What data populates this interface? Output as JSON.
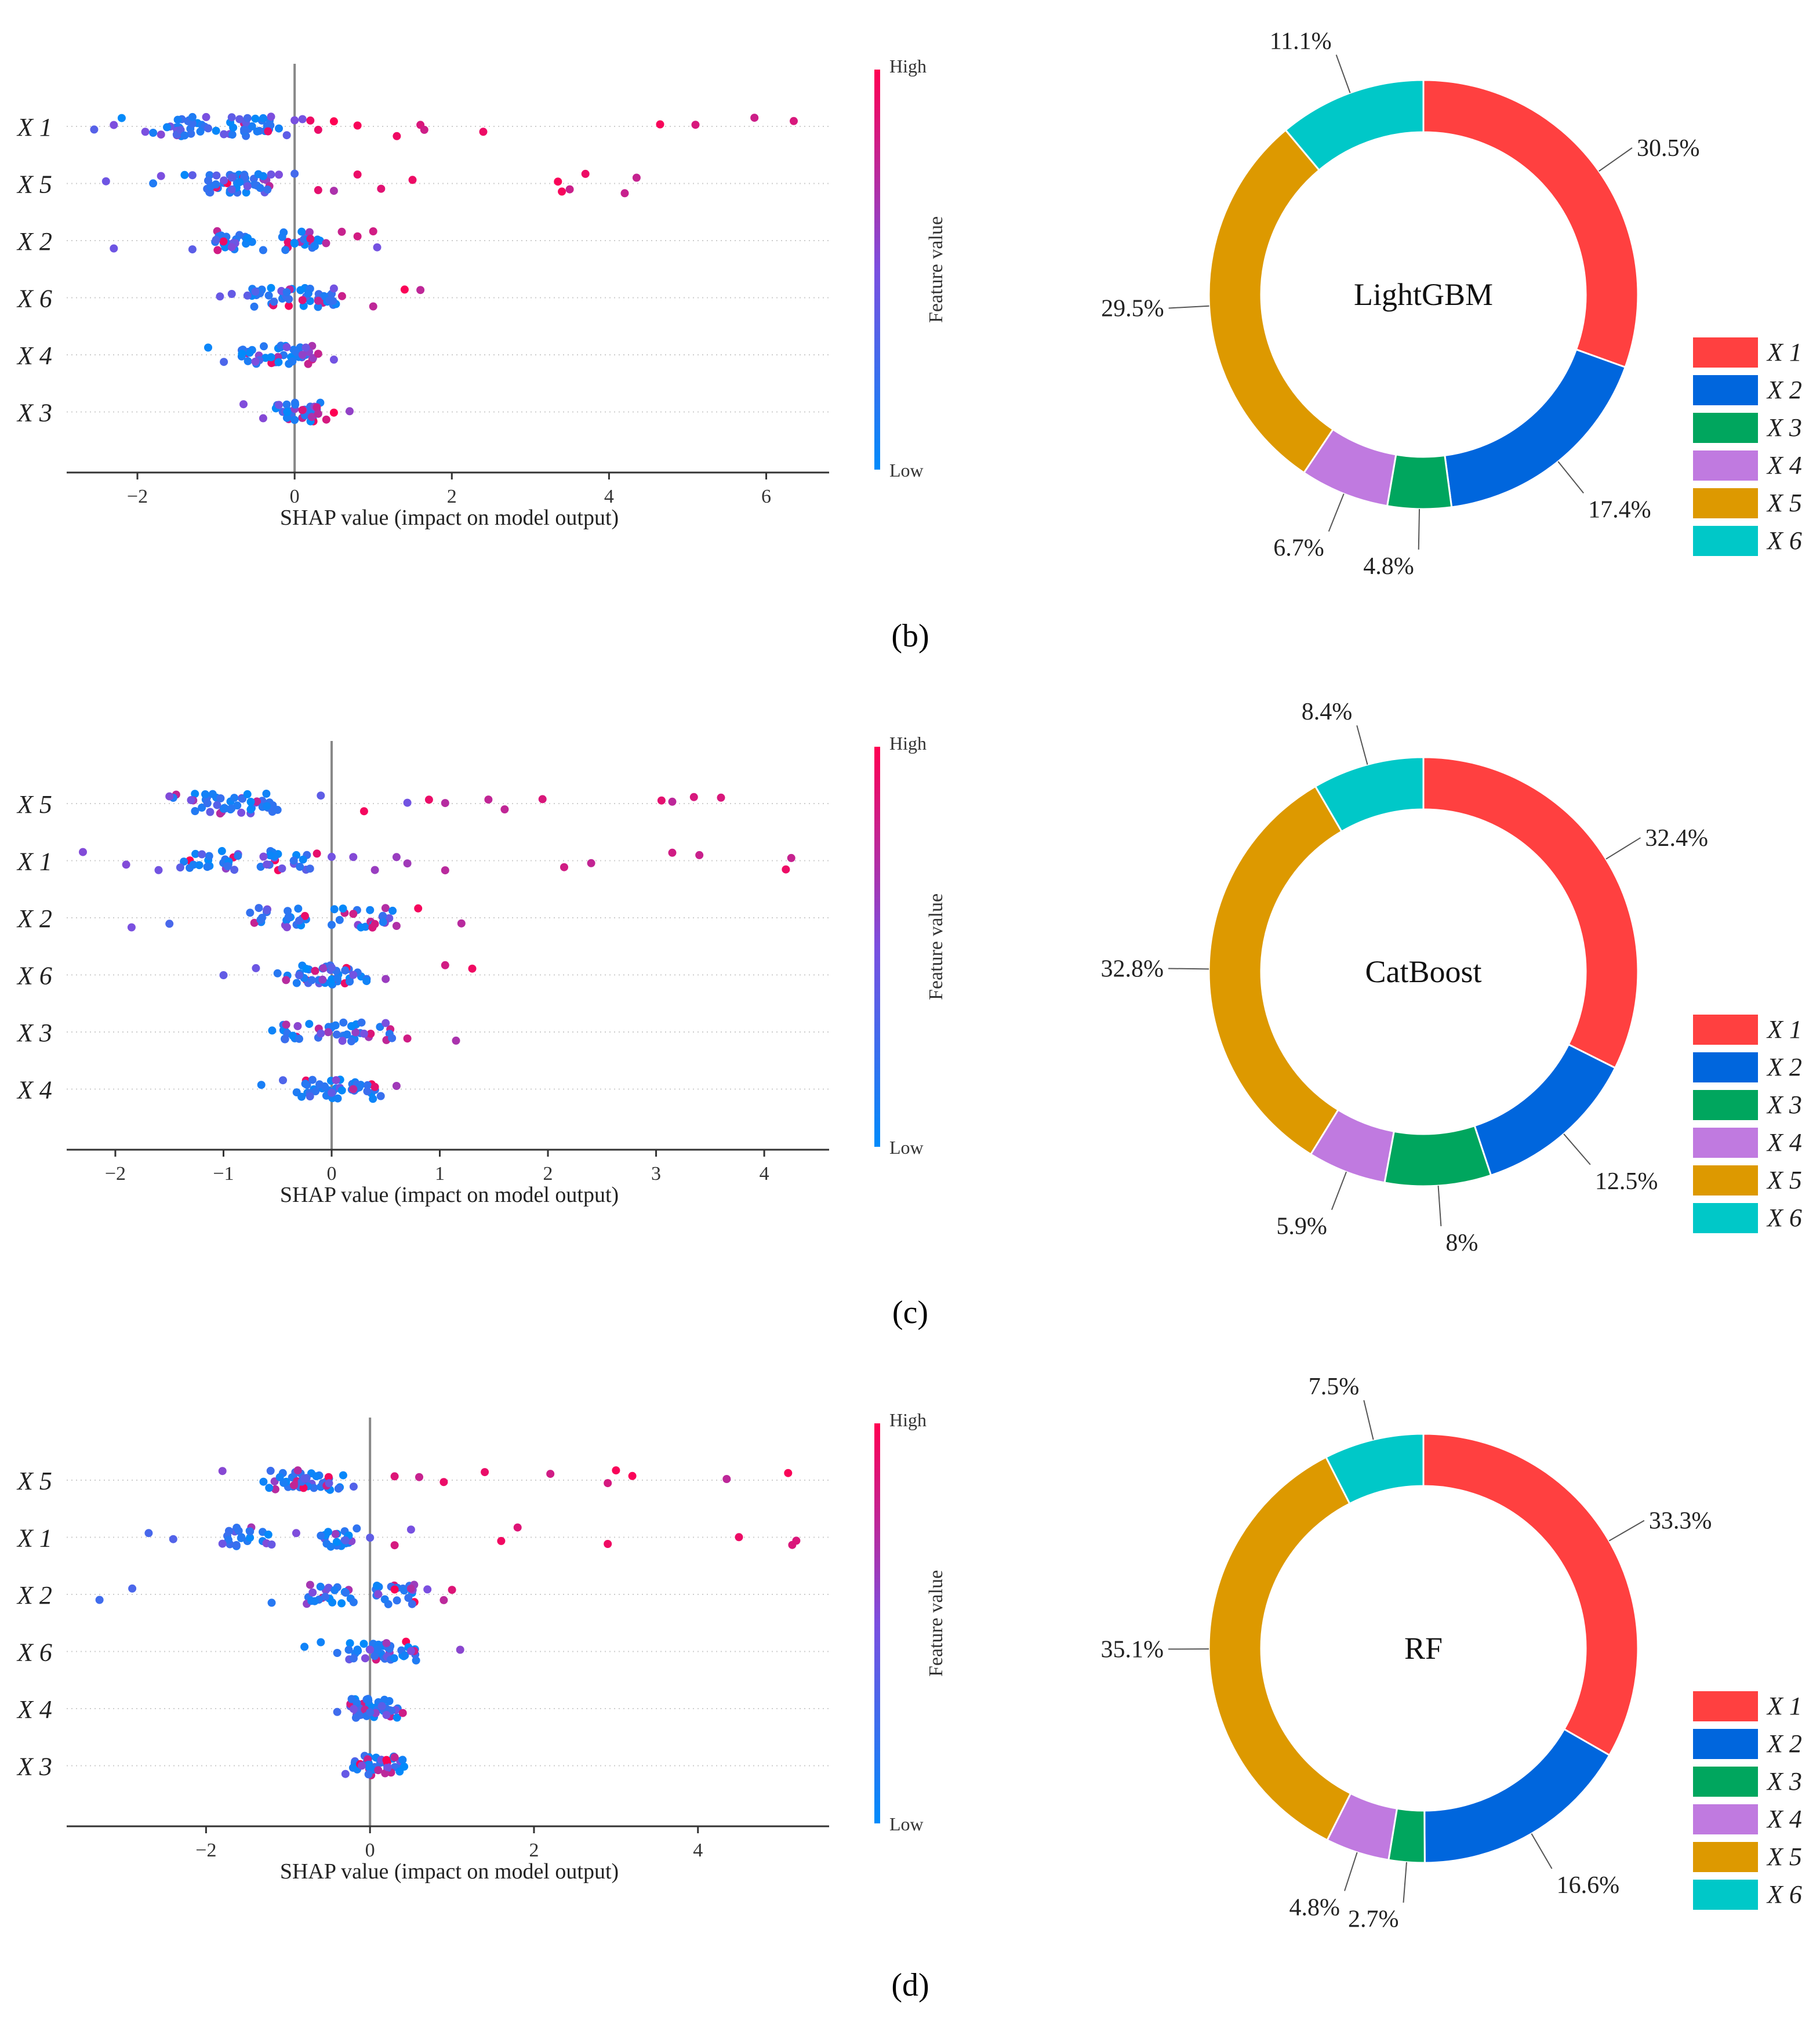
{
  "colors": {
    "high": "#ff0052",
    "low": "#008bfb",
    "X1": "#ff4040",
    "X2": "#0066dd",
    "X3": "#00a65e",
    "X4": "#c07ae0",
    "X5": "#dd9900",
    "X6": "#00c8c8"
  },
  "chart_data": [
    {
      "panel": "b",
      "type": "scatter",
      "subtype": "shap-beeswarm",
      "xlabel": "SHAP value (impact on model output)",
      "colorbar": {
        "label": "Feature value",
        "high": "High",
        "low": "Low"
      },
      "xlim": [
        -2.9,
        6.8
      ],
      "xticks": [
        -2,
        0,
        2,
        4,
        6
      ],
      "xtick_labels": [
        "−2",
        "0",
        "2",
        "4",
        "6"
      ],
      "features": [
        "X 1",
        "X 5",
        "X 2",
        "X 6",
        "X 4",
        "X 3"
      ],
      "series": [
        {
          "feature": "X 1",
          "low_cluster": [
            -1.35,
            -0.55
          ],
          "high_points": [
            -2.55,
            -2.3,
            -2.2,
            -1.9,
            -1.8,
            -1.7,
            -1.5,
            -1.45,
            -1.4,
            -1.3,
            -1.2,
            -1.1,
            -1.0,
            -0.9,
            -0.8,
            -0.7,
            -0.6,
            -0.5,
            -0.4,
            -0.3,
            -0.2,
            -0.1,
            0.0,
            0.1,
            0.2,
            0.3,
            0.5,
            0.8,
            1.3,
            1.6,
            1.65,
            2.4,
            4.65,
            5.1,
            5.85,
            6.35
          ]
        },
        {
          "feature": "X 5",
          "low_cluster": [
            -0.85,
            -0.55
          ],
          "high_points": [
            -2.4,
            -1.8,
            -1.7,
            -1.4,
            -1.3,
            -1.1,
            -0.9,
            -0.8,
            -0.6,
            -0.4,
            -0.2,
            0.0,
            0.3,
            0.5,
            0.8,
            1.1,
            1.5,
            3.35,
            3.4,
            3.5,
            3.7,
            4.2,
            4.35
          ]
        },
        {
          "feature": "X 2",
          "low_cluster": [
            -0.8,
            0.05
          ],
          "high_points": [
            -2.3,
            -1.3,
            -1.0,
            -0.8,
            -0.4,
            0.0,
            0.2,
            0.4,
            0.6,
            0.8,
            1.0,
            1.05
          ]
        },
        {
          "feature": "X 6",
          "low_cluster": [
            0.35,
            -0.3
          ],
          "high_points": [
            -0.95,
            -0.8,
            -0.6,
            -0.5,
            -0.3,
            -0.1,
            0.1,
            0.3,
            0.5,
            1.0,
            1.4,
            1.6
          ]
        },
        {
          "feature": "X 4",
          "low_cluster": [
            0.05,
            -0.4
          ],
          "high_points": [
            -1.1,
            -0.9,
            -0.5,
            -0.3,
            -0.1,
            0.1,
            0.3,
            0.5
          ]
        },
        {
          "feature": "X 3",
          "low_cluster": [
            0.0,
            0.15
          ],
          "high_points": [
            -0.65,
            -0.4,
            -0.2,
            0.0,
            0.1,
            0.3,
            0.5,
            0.7
          ]
        }
      ]
    },
    {
      "panel": "b",
      "type": "pie",
      "subtype": "donut",
      "center_label": "LightGBM",
      "labels": [
        "X 1",
        "X 2",
        "X 3",
        "X 4",
        "X 5",
        "X 6"
      ],
      "values": [
        30.5,
        17.4,
        4.8,
        6.7,
        29.5,
        11.1
      ],
      "value_labels": [
        "30.5%",
        "17.4%",
        "4.8%",
        "6.7%",
        "29.5%",
        "11.1%"
      ]
    },
    {
      "panel": "c",
      "type": "scatter",
      "subtype": "shap-beeswarm",
      "xlabel": "SHAP value (impact on model output)",
      "colorbar": {
        "label": "Feature value",
        "high": "High",
        "low": "Low"
      },
      "xlim": [
        -2.45,
        4.6
      ],
      "xticks": [
        -2,
        -1,
        0,
        1,
        2,
        3,
        4
      ],
      "xtick_labels": [
        "−2",
        "−1",
        "0",
        "1",
        "2",
        "3",
        "4"
      ],
      "features": [
        "X 5",
        "X 1",
        "X 2",
        "X 6",
        "X 3",
        "X 4"
      ],
      "series": [
        {
          "feature": "X 5",
          "low_cluster": [
            -0.8,
            -1.2
          ],
          "high_points": [
            -1.5,
            -1.3,
            -1.1,
            -0.9,
            -0.6,
            -0.5,
            -0.1,
            0.3,
            0.7,
            0.9,
            1.05,
            1.45,
            1.6,
            1.95,
            3.05,
            3.15,
            3.35,
            3.6
          ]
        },
        {
          "feature": "X 1",
          "low_cluster": [
            -1.1,
            -0.4
          ],
          "high_points": [
            -2.3,
            -1.9,
            -1.6,
            -1.4,
            -1.2,
            -0.9,
            -0.6,
            -0.2,
            0.0,
            0.2,
            0.4,
            0.6,
            0.7,
            1.05,
            2.15,
            2.4,
            3.15,
            3.4,
            4.2,
            4.25
          ]
        },
        {
          "feature": "X 2",
          "low_cluster": [
            -0.5,
            0.3
          ],
          "high_points": [
            -1.85,
            -1.5,
            -0.6,
            -0.3,
            0.0,
            0.2,
            0.4,
            0.6,
            0.8,
            1.2
          ]
        },
        {
          "feature": "X 6",
          "low_cluster": [
            0.1,
            -0.2
          ],
          "high_points": [
            -1.0,
            -0.7,
            -0.5,
            -0.3,
            0.0,
            0.2,
            0.5,
            1.05,
            1.3
          ]
        },
        {
          "feature": "X 3",
          "low_cluster": [
            -0.2,
            0.3
          ],
          "high_points": [
            -0.55,
            -0.3,
            -0.1,
            0.1,
            0.3,
            0.5,
            0.7,
            1.15
          ]
        },
        {
          "feature": "X 4",
          "low_cluster": [
            -0.05,
            0.2
          ],
          "high_points": [
            -0.65,
            -0.45,
            -0.2,
            0.0,
            0.2,
            0.4,
            0.6
          ]
        }
      ]
    },
    {
      "panel": "c",
      "type": "pie",
      "subtype": "donut",
      "center_label": "CatBoost",
      "labels": [
        "X 1",
        "X 2",
        "X 3",
        "X 4",
        "X 5",
        "X 6"
      ],
      "values": [
        32.4,
        12.5,
        8,
        5.9,
        32.8,
        8.4
      ],
      "value_labels": [
        "32.4%",
        "12.5%",
        "8%",
        "5.9%",
        "32.8%",
        "8.4%"
      ]
    },
    {
      "panel": "d",
      "type": "scatter",
      "subtype": "shap-beeswarm",
      "xlabel": "SHAP value (impact on model output)",
      "colorbar": {
        "label": "Feature value",
        "high": "High",
        "low": "Low"
      },
      "xlim": [
        -3.7,
        5.6
      ],
      "xticks": [
        -2,
        0,
        2,
        4
      ],
      "xtick_labels": [
        "−2",
        "0",
        "2",
        "4"
      ],
      "features": [
        "X 5",
        "X 1",
        "X 2",
        "X 6",
        "X 4",
        "X 3"
      ],
      "series": [
        {
          "feature": "X 5",
          "low_cluster": [
            -1.0,
            -0.6
          ],
          "high_points": [
            -1.8,
            -1.3,
            -1.1,
            -0.8,
            -0.5,
            -0.2,
            0.3,
            0.6,
            0.9,
            1.4,
            2.2,
            2.9,
            3.0,
            3.2,
            4.35,
            5.1
          ]
        },
        {
          "feature": "X 1",
          "low_cluster": [
            -1.5,
            -0.3
          ],
          "high_points": [
            -2.7,
            -2.4,
            -1.8,
            -1.2,
            -0.9,
            -0.6,
            -0.3,
            0.0,
            0.3,
            0.5,
            1.6,
            1.8,
            2.9,
            4.5,
            5.15,
            5.2
          ]
        },
        {
          "feature": "X 2",
          "low_cluster": [
            -0.5,
            0.3
          ],
          "high_points": [
            -3.3,
            -2.9,
            -1.2,
            -0.7,
            -0.2,
            0.1,
            0.3,
            0.5,
            0.7,
            0.9,
            1.0
          ]
        },
        {
          "feature": "X 6",
          "low_cluster": [
            0.0,
            0.3
          ],
          "high_points": [
            -0.8,
            -0.6,
            -0.4,
            -0.2,
            0.0,
            0.2,
            0.5,
            1.1
          ]
        },
        {
          "feature": "X 4",
          "low_cluster": [
            0.0,
            0.1
          ],
          "high_points": [
            -0.4,
            -0.2,
            0.0,
            0.2,
            0.4
          ]
        },
        {
          "feature": "X 3",
          "low_cluster": [
            0.05,
            0.15
          ],
          "high_points": [
            -0.3,
            -0.1,
            0.1,
            0.2,
            0.3
          ]
        }
      ]
    },
    {
      "panel": "d",
      "type": "pie",
      "subtype": "donut",
      "center_label": "RF",
      "labels": [
        "X 1",
        "X 2",
        "X 3",
        "X 4",
        "X 5",
        "X 6"
      ],
      "values": [
        33.3,
        16.6,
        2.7,
        4.8,
        35.1,
        7.5
      ],
      "value_labels": [
        "33.3%",
        "16.6%",
        "2.7%",
        "4.8%",
        "35.1%",
        "7.5%"
      ]
    }
  ],
  "panel_labels": [
    "(b)",
    "(c)",
    "(d)"
  ]
}
